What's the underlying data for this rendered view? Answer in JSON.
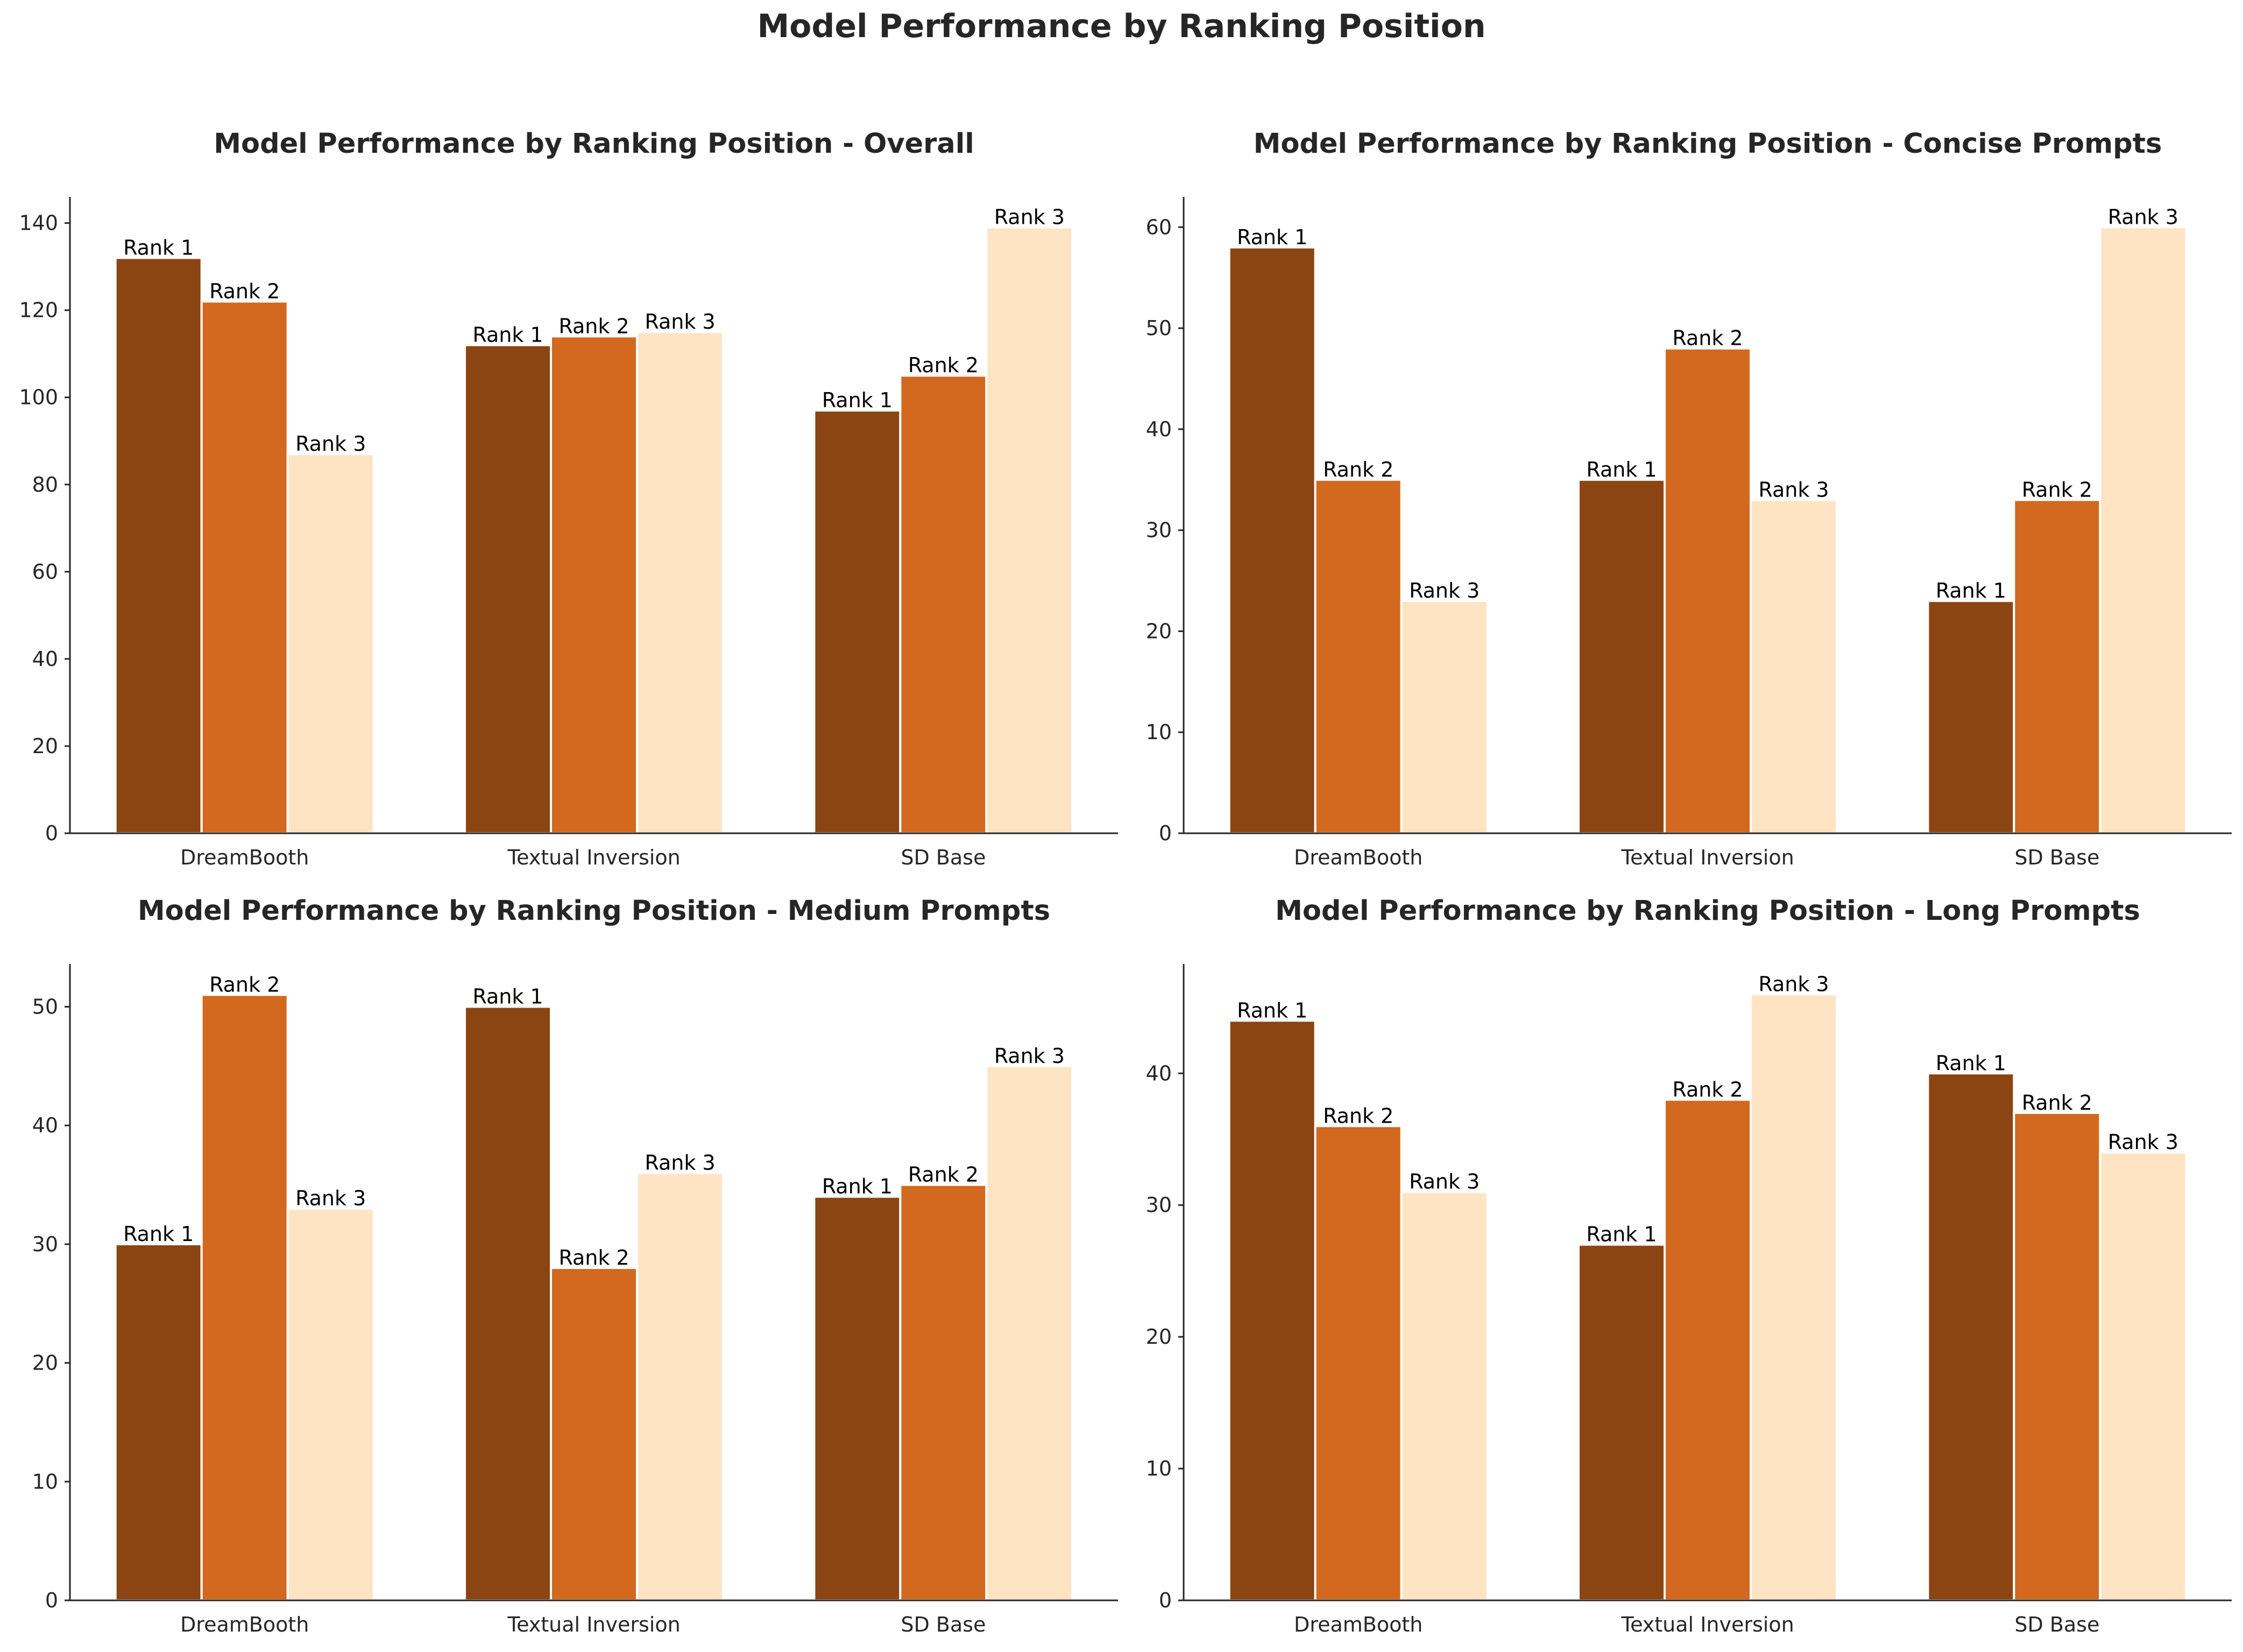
{
  "figure": {
    "suptitle": "Model Performance by Ranking Position"
  },
  "colors": {
    "rank1": "#8B4513",
    "rank2": "#D2691E",
    "rank3": "#FFE4C4",
    "text": "#262626",
    "axis": "#262626"
  },
  "chart_data": [
    {
      "type": "bar",
      "title": "Model Performance by Ranking Position - Overall",
      "categories": [
        "DreamBooth",
        "Textual Inversion",
        "SD Base"
      ],
      "series": [
        {
          "name": "Rank 1",
          "values": [
            132,
            112,
            97
          ]
        },
        {
          "name": "Rank 2",
          "values": [
            122,
            114,
            105
          ]
        },
        {
          "name": "Rank 3",
          "values": [
            87,
            115,
            139
          ]
        }
      ],
      "xlabel": "",
      "ylabel": "",
      "ylim": [
        0,
        146
      ],
      "yticks": [
        0,
        20,
        40,
        60,
        80,
        100,
        120,
        140
      ],
      "grid": false,
      "legend": "none"
    },
    {
      "type": "bar",
      "title": "Model Performance by Ranking Position - Concise Prompts",
      "categories": [
        "DreamBooth",
        "Textual Inversion",
        "SD Base"
      ],
      "series": [
        {
          "name": "Rank 1",
          "values": [
            58,
            35,
            23
          ]
        },
        {
          "name": "Rank 2",
          "values": [
            35,
            48,
            33
          ]
        },
        {
          "name": "Rank 3",
          "values": [
            23,
            33,
            60
          ]
        }
      ],
      "xlabel": "",
      "ylabel": "",
      "ylim": [
        0,
        63
      ],
      "yticks": [
        0,
        10,
        20,
        30,
        40,
        50,
        60
      ],
      "grid": false,
      "legend": "none"
    },
    {
      "type": "bar",
      "title": "Model Performance by Ranking Position - Medium Prompts",
      "categories": [
        "DreamBooth",
        "Textual Inversion",
        "SD Base"
      ],
      "series": [
        {
          "name": "Rank 1",
          "values": [
            30,
            50,
            34
          ]
        },
        {
          "name": "Rank 2",
          "values": [
            51,
            28,
            35
          ]
        },
        {
          "name": "Rank 3",
          "values": [
            33,
            36,
            45
          ]
        }
      ],
      "xlabel": "",
      "ylabel": "",
      "ylim": [
        0,
        53.6
      ],
      "yticks": [
        0,
        10,
        20,
        30,
        40,
        50
      ],
      "grid": false,
      "legend": "none"
    },
    {
      "type": "bar",
      "title": "Model Performance by Ranking Position - Long Prompts",
      "categories": [
        "DreamBooth",
        "Textual Inversion",
        "SD Base"
      ],
      "series": [
        {
          "name": "Rank 1",
          "values": [
            44,
            27,
            40
          ]
        },
        {
          "name": "Rank 2",
          "values": [
            36,
            38,
            37
          ]
        },
        {
          "name": "Rank 3",
          "values": [
            31,
            46,
            34
          ]
        }
      ],
      "xlabel": "",
      "ylabel": "",
      "ylim": [
        0,
        48.3
      ],
      "yticks": [
        0,
        10,
        20,
        30,
        40
      ],
      "grid": false,
      "legend": "none"
    }
  ]
}
